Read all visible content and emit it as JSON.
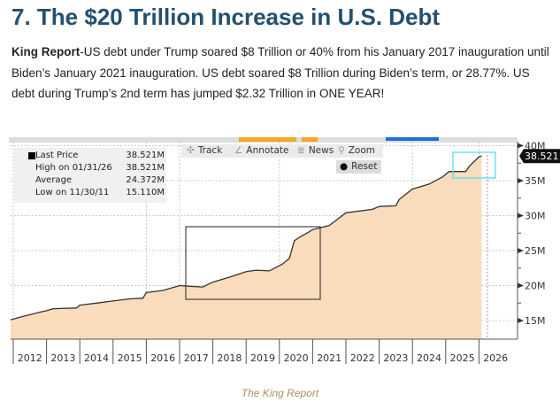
{
  "title": "7. The $20 Trillion Increase in U.S. Debt",
  "paragraph": {
    "bold_lead": "King Report",
    "text": "-US debt under Trump soared $8 Trillion or 40% from his January 2017 inauguration until Biden’s January 2021 inauguration.  US debt soared $8 Trillion during Biden’s term, or 28.77%.  US debt during Trump’s 2nd term has jumped $2.32 Trillion in ONE YEAR!"
  },
  "toolbar": {
    "track": "Track",
    "annotate": "Annotate",
    "news": "News",
    "zoom": "Zoom",
    "reset": "Reset"
  },
  "legend": [
    {
      "label": "Last Price",
      "value": "38.521M"
    },
    {
      "label": "High on 01/31/26",
      "value": "38.521M"
    },
    {
      "label": "Average",
      "value": "24.372M"
    },
    {
      "label": "Low on 11/30/11",
      "value": "15.110M"
    }
  ],
  "last_price_tag": "38.521",
  "caption": "The King Report",
  "chart_data": {
    "type": "area",
    "title": "",
    "xlabel": "",
    "ylabel": "",
    "x_ticks": [
      "2012",
      "2013",
      "2014",
      "2015",
      "2016",
      "2017",
      "2018",
      "2019",
      "2020",
      "2021",
      "2022",
      "2023",
      "2024",
      "2025",
      "2026"
    ],
    "y_ticks": [
      "15M",
      "20M",
      "25M",
      "30M",
      "35M",
      "40M"
    ],
    "xlim": [
      2011.9,
      2026.9
    ],
    "ylim": [
      12.4,
      40
    ],
    "fill_color": "#f9dcbc",
    "line_color": "#333333",
    "series": [
      {
        "name": "US Debt",
        "x": [
          2011.92,
          2012.3,
          2012.8,
          2013.0,
          2013.2,
          2013.9,
          2014.0,
          2014.5,
          2015.0,
          2015.5,
          2015.9,
          2016.0,
          2016.5,
          2017.0,
          2017.3,
          2017.7,
          2018.0,
          2018.5,
          2019.0,
          2019.3,
          2019.7,
          2020.1,
          2020.3,
          2020.45,
          2020.6,
          2020.9,
          2021.0,
          2021.5,
          2022.0,
          2022.8,
          2023.0,
          2023.5,
          2023.6,
          2024.0,
          2024.5,
          2024.9,
          2025.1,
          2025.6,
          2025.7,
          2026.0,
          2026.08
        ],
        "y": [
          15.11,
          15.6,
          16.2,
          16.4,
          16.7,
          16.8,
          17.2,
          17.5,
          17.8,
          18.1,
          18.2,
          19.0,
          19.3,
          20.0,
          19.9,
          19.8,
          20.5,
          21.2,
          22.0,
          22.2,
          22.1,
          23.1,
          23.9,
          26.4,
          26.9,
          27.7,
          28.0,
          28.6,
          30.4,
          30.9,
          31.3,
          31.4,
          32.3,
          33.8,
          34.5,
          35.5,
          36.3,
          36.3,
          37.0,
          38.4,
          38.52
        ]
      }
    ]
  }
}
